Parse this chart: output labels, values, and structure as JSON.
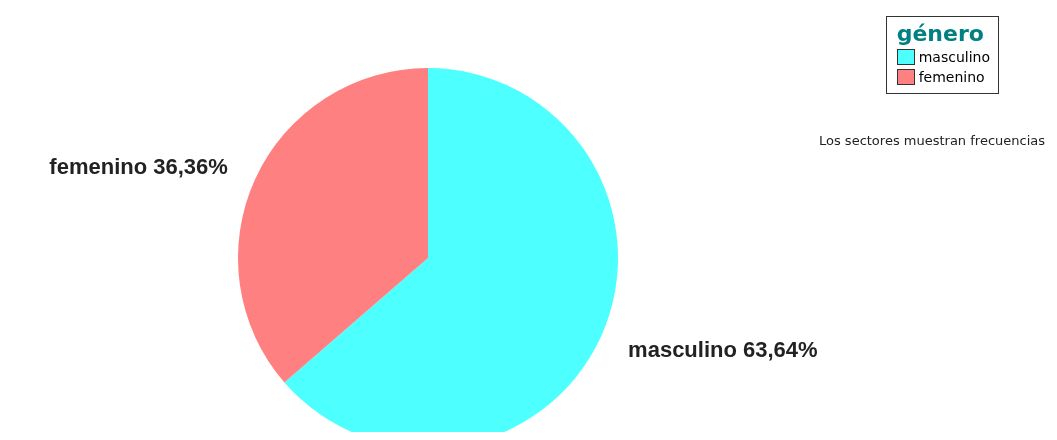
{
  "chart_data": {
    "type": "pie",
    "categories": [
      "masculino",
      "femenino"
    ],
    "values": [
      63.64,
      36.36
    ],
    "value_labels": [
      "63,64%",
      "36,36%"
    ],
    "colors": [
      "#4dffff",
      "#ff8080"
    ],
    "legend_title": "género",
    "legend": "top right",
    "annotations": [
      "Los sectores muestran frecuencias"
    ]
  }
}
